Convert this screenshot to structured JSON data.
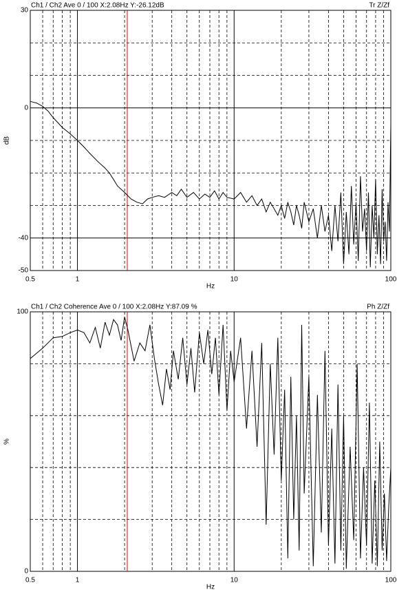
{
  "chart_data": [
    {
      "type": "line",
      "title": "Ch1 / Ch2  Ave 0 / 100  X:2.08Hz  Y:-26.12dB",
      "corner_label": "Tr Z/Zf",
      "xlabel": "Hz",
      "ylabel": "dB",
      "log_x": true,
      "color": "#000000",
      "cursor_x": 2.08,
      "cursor_color": "#e00000",
      "xlim": [
        0.5,
        100
      ],
      "xticks": [
        0.5,
        1,
        10,
        100
      ],
      "x_minor_grid": [
        0.6,
        0.7,
        0.8,
        0.9,
        2,
        3,
        4,
        5,
        6,
        7,
        8,
        9,
        20,
        30,
        40,
        50,
        60,
        70,
        80,
        90
      ],
      "ylim": [
        -50,
        30
      ],
      "yticks": [
        30,
        0,
        -40,
        -50
      ],
      "y_minor_grid": [
        20,
        10,
        -10,
        -20,
        -30
      ],
      "x": [
        0.5,
        0.55,
        0.6,
        0.65,
        0.7,
        0.8,
        0.9,
        1,
        1.1,
        1.2,
        1.35,
        1.5,
        1.6,
        1.7,
        1.8,
        2,
        2.2,
        2.4,
        2.6,
        2.8,
        3,
        3.3,
        3.6,
        4,
        4.3,
        4.6,
        5,
        5.5,
        6,
        6.5,
        7,
        7.5,
        8,
        8.5,
        9,
        10,
        11,
        12,
        13,
        14,
        15,
        16,
        17,
        18,
        19,
        20,
        21,
        22,
        23,
        24,
        25,
        26,
        27,
        28,
        30,
        32,
        34,
        36,
        38,
        40,
        42,
        44,
        46,
        48,
        50,
        52,
        54,
        56,
        58,
        60,
        62,
        64,
        66,
        68,
        70,
        72,
        74,
        76,
        78,
        80,
        82,
        84,
        86,
        88,
        90,
        92,
        94,
        96,
        98,
        100
      ],
      "values": [
        2,
        1.5,
        0.5,
        -1,
        -3,
        -6,
        -8,
        -10,
        -12,
        -14,
        -16.5,
        -18.5,
        -20,
        -22,
        -24,
        -26,
        -28,
        -29,
        -29.5,
        -28,
        -27.5,
        -27,
        -27.5,
        -26,
        -27,
        -25,
        -27.5,
        -26,
        -28,
        -26.5,
        -27.5,
        -25.5,
        -28,
        -26,
        -27.5,
        -28,
        -26,
        -29,
        -27,
        -30,
        -28,
        -32,
        -29,
        -31,
        -33,
        -30,
        -34,
        -29,
        -32,
        -36,
        -30,
        -33,
        -37,
        -29,
        -35,
        -31,
        -40,
        -30,
        -38,
        -33,
        -44,
        -30,
        -41,
        -26,
        -48,
        -32,
        -45,
        -24,
        -42,
        -29,
        -47,
        -21,
        -38,
        -31,
        -44,
        -26,
        -49,
        -30,
        -40,
        -22,
        -45,
        -33,
        -48,
        -25,
        -41,
        -35,
        -47,
        -29,
        -38,
        -5
      ]
    },
    {
      "type": "line",
      "title": "Ch1 / Ch2  Coherence Ave 0 / 100  X:2.08Hz  Y:87.09 %",
      "corner_label": "Ph Z/Zf",
      "xlabel": "Hz",
      "ylabel": "%",
      "log_x": true,
      "color": "#000000",
      "cursor_x": 2.08,
      "cursor_color": "#e00000",
      "xlim": [
        0.5,
        100
      ],
      "xticks": [
        0.5,
        1,
        10,
        100
      ],
      "x_minor_grid": [
        0.6,
        0.7,
        0.8,
        0.9,
        2,
        3,
        4,
        5,
        6,
        7,
        8,
        9,
        20,
        30,
        40,
        50,
        60,
        70,
        80,
        90
      ],
      "ylim": [
        0,
        100
      ],
      "yticks": [
        100,
        0
      ],
      "y_minor_grid": [
        80,
        60,
        40,
        20
      ],
      "x": [
        0.5,
        0.6,
        0.7,
        0.8,
        0.9,
        1,
        1.1,
        1.2,
        1.3,
        1.4,
        1.5,
        1.6,
        1.7,
        1.8,
        1.9,
        2,
        2.1,
        2.3,
        2.5,
        2.7,
        2.9,
        3.1,
        3.3,
        3.5,
        3.7,
        3.9,
        4.1,
        4.4,
        4.7,
        5,
        5.3,
        5.6,
        6,
        6.4,
        6.8,
        7.2,
        7.6,
        8,
        8.5,
        9,
        9.5,
        10,
        11,
        12,
        13,
        14,
        15,
        16,
        17,
        18,
        19,
        20,
        21,
        22,
        23,
        24,
        25,
        26,
        27,
        28,
        30,
        32,
        34,
        36,
        38,
        40,
        42,
        44,
        46,
        48,
        50,
        52,
        55,
        58,
        61,
        64,
        67,
        70,
        73,
        76,
        79,
        82,
        85,
        88,
        91,
        94,
        97,
        100
      ],
      "values": [
        82,
        86,
        90,
        90.5,
        92,
        93,
        92,
        88,
        94,
        86,
        96,
        91,
        97,
        95,
        89,
        98,
        93,
        81,
        88,
        85,
        95,
        82,
        72,
        64,
        78,
        70,
        85,
        74,
        90,
        72,
        86,
        69,
        92,
        80,
        93,
        76,
        90,
        68,
        95,
        62,
        85,
        73,
        90,
        55,
        85,
        48,
        88,
        18,
        80,
        45,
        90,
        35,
        70,
        5,
        75,
        20,
        60,
        8,
        95,
        30,
        75,
        2,
        68,
        15,
        85,
        10,
        55,
        3,
        72,
        8,
        60,
        1,
        48,
        12,
        80,
        5,
        40,
        10,
        65,
        3,
        35,
        2,
        50,
        8,
        30,
        4,
        25,
        40
      ]
    }
  ]
}
